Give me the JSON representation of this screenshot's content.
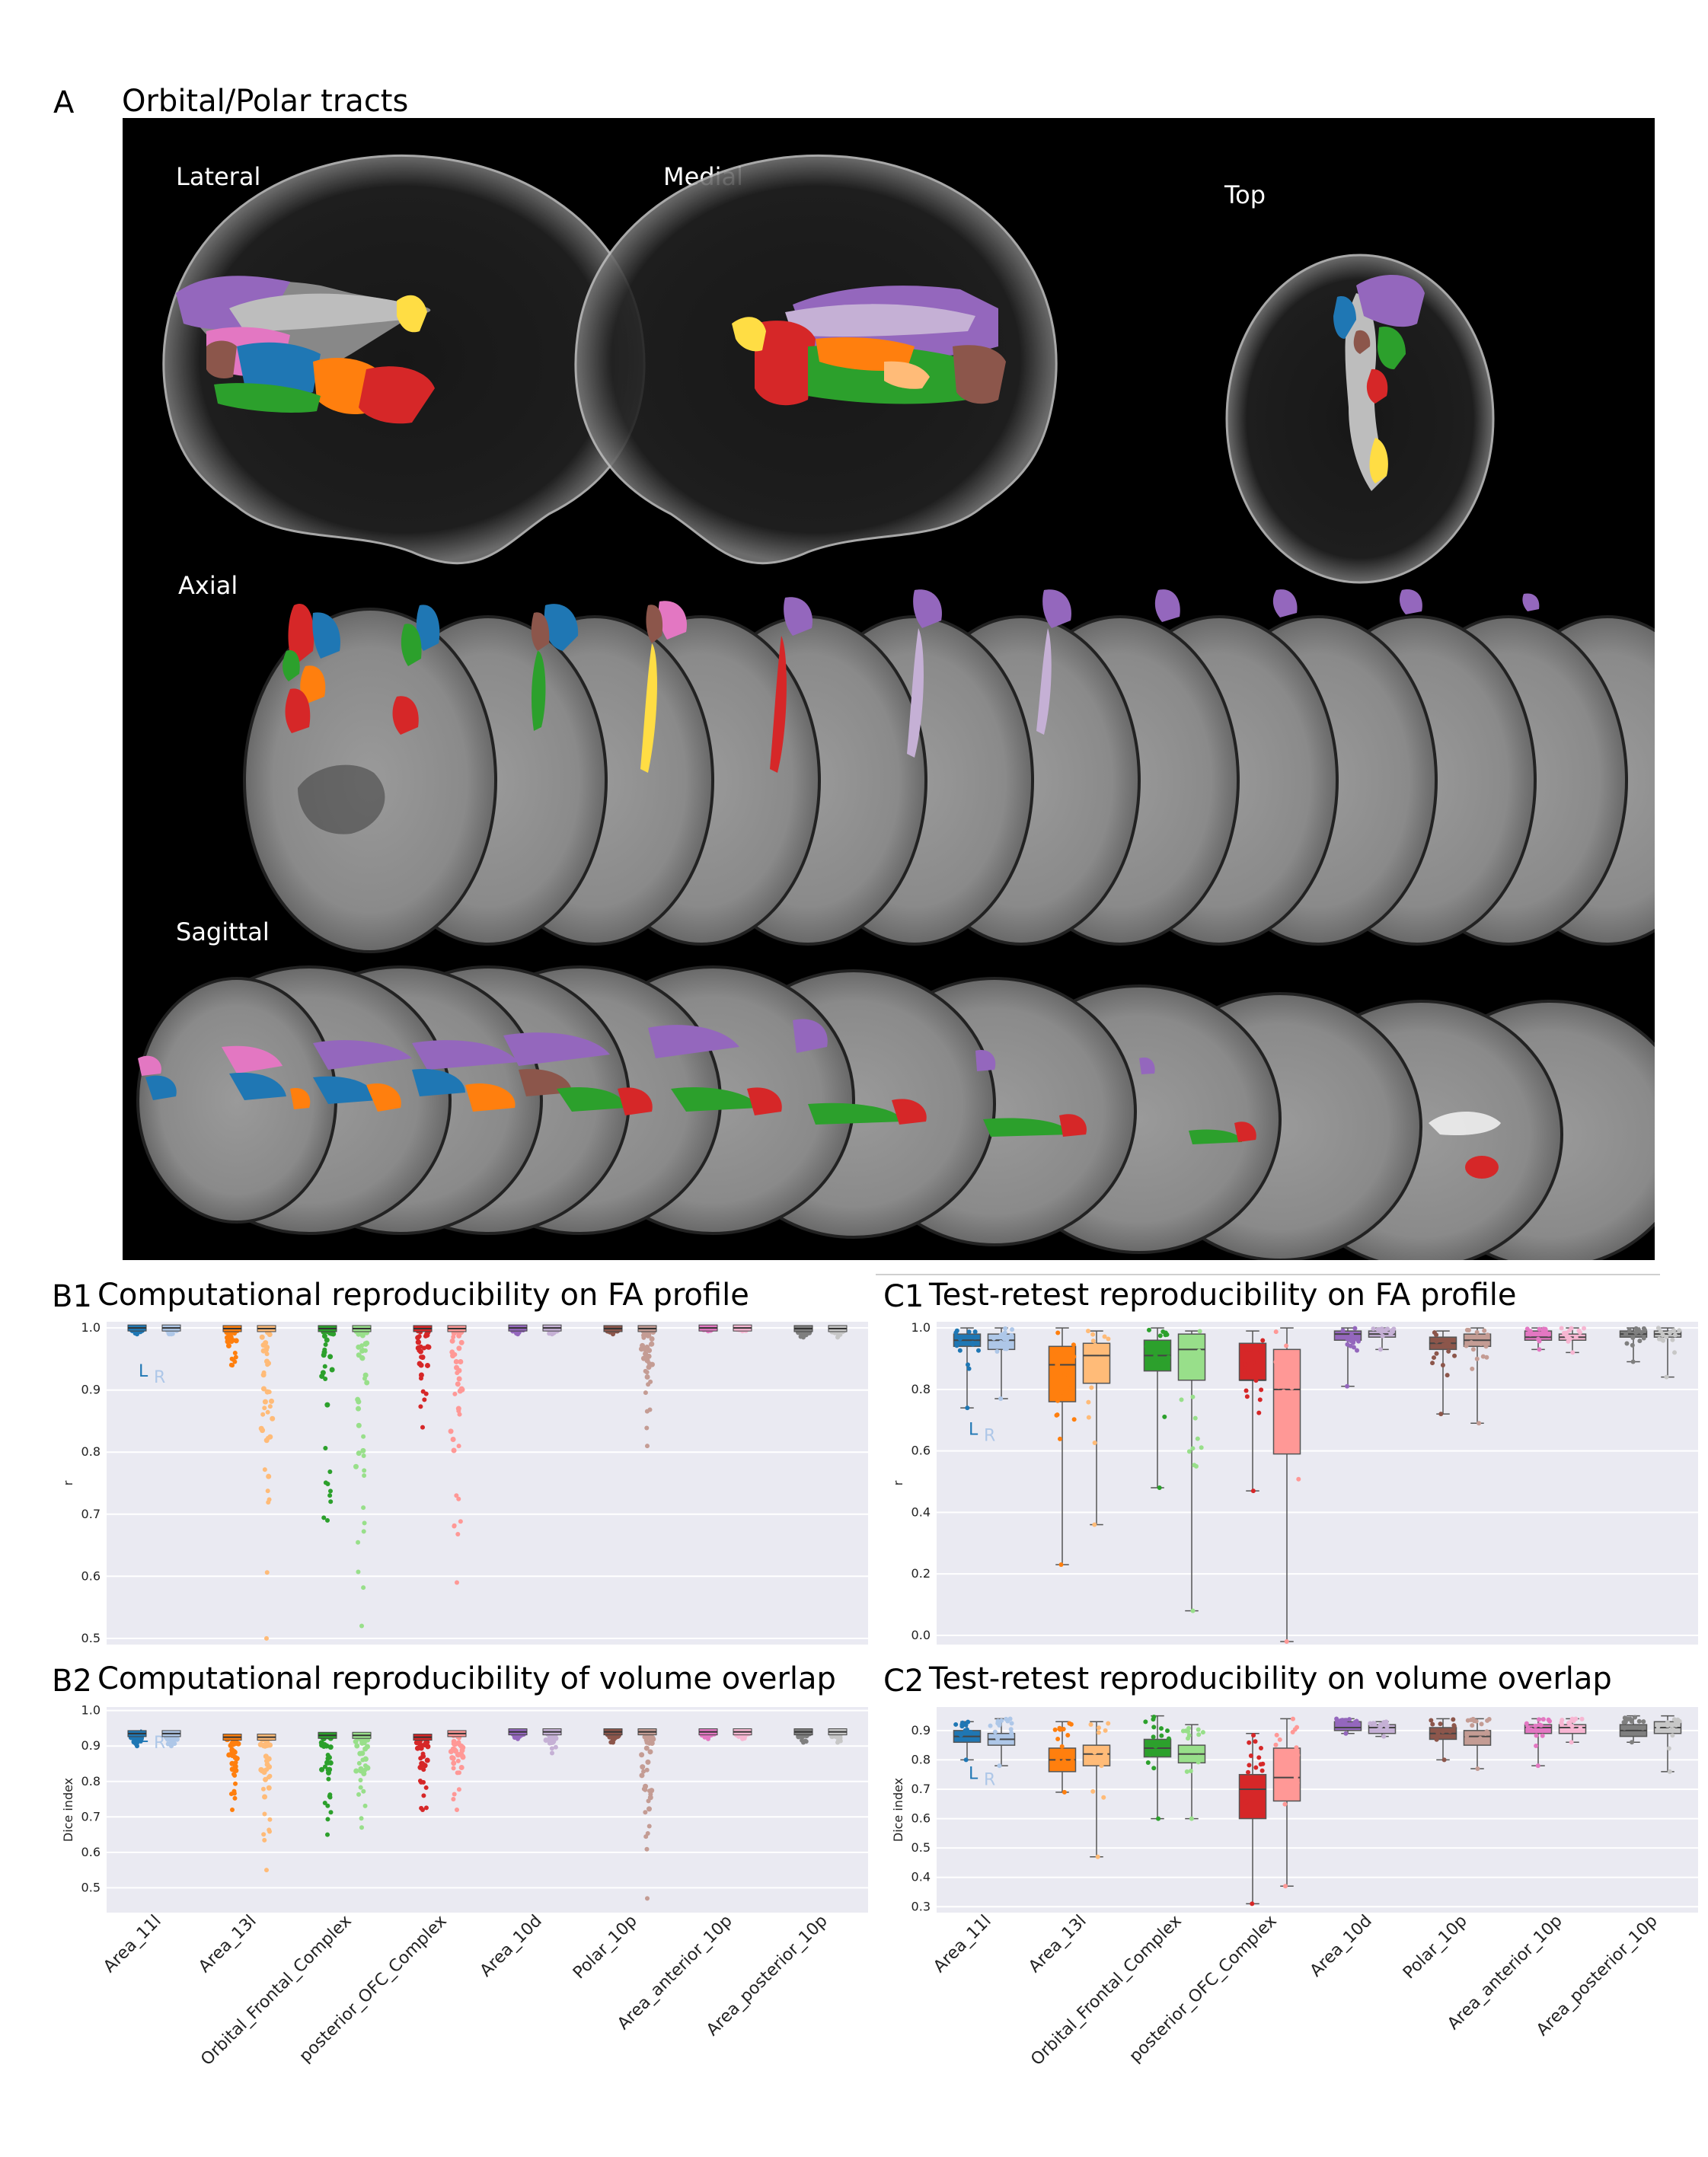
{
  "panel_a": {
    "letter": "A",
    "title": "Orbital/Polar tracts",
    "views": {
      "lateral": "Lateral",
      "medial": "Medial",
      "top": "Top",
      "axial": "Axial",
      "sagittal": "Sagittal"
    }
  },
  "colors": {
    "Area_11l": [
      "#1f77b4",
      "#aec7e8"
    ],
    "Area_13l": [
      "#ff7f0e",
      "#ffbb78"
    ],
    "Orbital_Frontal_Complex": [
      "#2ca02c",
      "#98df8a"
    ],
    "posterior_OFC_Complex": [
      "#d62728",
      "#ff9896"
    ],
    "Area_10d": [
      "#9467bd",
      "#c5b0d5"
    ],
    "Polar_10p": [
      "#8c564b",
      "#c49c94"
    ],
    "Area_anterior_10p": [
      "#e377c2",
      "#f7b6d2"
    ],
    "Area_posterior_10p": [
      "#7f7f7f",
      "#c7c7c7"
    ]
  },
  "chart_data": [
    {
      "id": "B1",
      "letter": "B1",
      "title": "Computational reproducibility on FA profile",
      "type": "strip",
      "ylabel": "r",
      "ylim": [
        0.49,
        1.01
      ],
      "yticks": [
        "1.0",
        "0.9",
        "0.8",
        "0.7",
        "0.6",
        "0.5"
      ],
      "legend": [
        "L",
        "R"
      ],
      "categories": [
        "Area_11l",
        "Area_13l",
        "Orbital_Frontal_Complex",
        "posterior_OFC_Complex",
        "Area_10d",
        "Polar_10p",
        "Area_anterior_10p",
        "Area_posterior_10p"
      ],
      "series": [
        {
          "name": "L",
          "median": [
            1.0,
            0.999,
            0.999,
            0.999,
            1.0,
            0.999,
            1.0,
            0.999
          ],
          "min": [
            0.99,
            0.94,
            0.69,
            0.84,
            0.99,
            0.99,
            0.995,
            0.985
          ]
        },
        {
          "name": "R",
          "median": [
            1.0,
            0.999,
            0.999,
            0.999,
            1.0,
            0.999,
            1.0,
            0.999
          ],
          "min": [
            0.99,
            0.5,
            0.52,
            0.59,
            0.99,
            0.81,
            0.995,
            0.985
          ]
        }
      ]
    },
    {
      "id": "B2",
      "letter": "B2",
      "title": "Computational reproducibility of volume overlap",
      "type": "strip",
      "ylabel": "Dice index",
      "ylim": [
        0.43,
        1.01
      ],
      "yticks": [
        "1.0",
        "0.9",
        "0.8",
        "0.7",
        "0.6",
        "0.5"
      ],
      "legend": [
        "L",
        "R"
      ],
      "categories": [
        "Area_11l",
        "Area_13l",
        "Orbital_Frontal_Complex",
        "posterior_OFC_Complex",
        "Area_10d",
        "Polar_10p",
        "Area_anterior_10p",
        "Area_posterior_10p"
      ],
      "series": [
        {
          "name": "L",
          "median": [
            0.935,
            0.925,
            0.93,
            0.925,
            0.94,
            0.94,
            0.94,
            0.94
          ],
          "min": [
            0.9,
            0.72,
            0.65,
            0.72,
            0.92,
            0.91,
            0.92,
            0.91
          ]
        },
        {
          "name": "R",
          "median": [
            0.935,
            0.925,
            0.93,
            0.935,
            0.94,
            0.94,
            0.94,
            0.94
          ],
          "min": [
            0.9,
            0.55,
            0.67,
            0.72,
            0.88,
            0.47,
            0.92,
            0.91
          ]
        }
      ]
    },
    {
      "id": "C1",
      "letter": "C1",
      "title": "Test-retest reproducibility on FA profile",
      "type": "box",
      "ylabel": "r",
      "ylim": [
        -0.03,
        1.02
      ],
      "yticks": [
        "1.0",
        "0.8",
        "0.6",
        "0.4",
        "0.2",
        "0.0"
      ],
      "legend": [
        "L",
        "R"
      ],
      "categories": [
        "Area_11l",
        "Area_13l",
        "Orbital_Frontal_Complex",
        "posterior_OFC_Complex",
        "Area_10d",
        "Polar_10p",
        "Area_anterior_10p",
        "Area_posterior_10p"
      ],
      "series": [
        {
          "name": "L",
          "q1": [
            0.94,
            0.76,
            0.86,
            0.83,
            0.96,
            0.93,
            0.96,
            0.97
          ],
          "median": [
            0.96,
            0.88,
            0.91,
            0.83,
            0.98,
            0.95,
            0.97,
            0.98
          ],
          "q3": [
            0.98,
            0.94,
            0.96,
            0.95,
            0.99,
            0.97,
            0.99,
            0.99
          ],
          "min": [
            0.74,
            0.23,
            0.48,
            0.47,
            0.81,
            0.72,
            0.93,
            0.89
          ],
          "max": [
            1.0,
            1.0,
            1.0,
            0.99,
            1.0,
            0.99,
            1.0,
            1.0
          ]
        },
        {
          "name": "R",
          "q1": [
            0.93,
            0.82,
            0.83,
            0.59,
            0.97,
            0.94,
            0.96,
            0.97
          ],
          "median": [
            0.96,
            0.91,
            0.93,
            0.8,
            0.98,
            0.96,
            0.97,
            0.98
          ],
          "q3": [
            0.98,
            0.95,
            0.98,
            0.93,
            0.99,
            0.98,
            0.98,
            0.99
          ],
          "min": [
            0.77,
            0.36,
            0.08,
            -0.02,
            0.93,
            0.69,
            0.92,
            0.84
          ],
          "max": [
            1.0,
            0.99,
            0.99,
            1.0,
            1.0,
            1.0,
            1.0,
            1.0
          ]
        }
      ]
    },
    {
      "id": "C2",
      "letter": "C2",
      "title": "Test-retest reproducibility on volume overlap",
      "type": "box",
      "ylabel": "Dice index",
      "ylim": [
        0.28,
        0.98
      ],
      "yticks": [
        "0.9",
        "0.8",
        "0.7",
        "0.6",
        "0.5",
        "0.4",
        "0.3"
      ],
      "legend": [
        "L",
        "R"
      ],
      "categories": [
        "Area_11l",
        "Area_13l",
        "Orbital_Frontal_Complex",
        "posterior_OFC_Complex",
        "Area_10d",
        "Polar_10p",
        "Area_anterior_10p",
        "Area_posterior_10p"
      ],
      "series": [
        {
          "name": "L",
          "q1": [
            0.86,
            0.76,
            0.81,
            0.6,
            0.9,
            0.87,
            0.89,
            0.88
          ],
          "median": [
            0.88,
            0.8,
            0.84,
            0.7,
            0.91,
            0.89,
            0.91,
            0.9
          ],
          "q3": [
            0.9,
            0.84,
            0.87,
            0.75,
            0.93,
            0.91,
            0.92,
            0.92
          ],
          "min": [
            0.8,
            0.69,
            0.6,
            0.31,
            0.89,
            0.8,
            0.78,
            0.86
          ],
          "max": [
            0.93,
            0.93,
            0.95,
            0.89,
            0.94,
            0.94,
            0.94,
            0.95
          ]
        },
        {
          "name": "R",
          "q1": [
            0.85,
            0.78,
            0.79,
            0.66,
            0.89,
            0.85,
            0.89,
            0.89
          ],
          "median": [
            0.87,
            0.82,
            0.82,
            0.74,
            0.91,
            0.88,
            0.91,
            0.91
          ],
          "q3": [
            0.89,
            0.85,
            0.85,
            0.84,
            0.92,
            0.9,
            0.92,
            0.93
          ],
          "min": [
            0.78,
            0.47,
            0.6,
            0.37,
            0.88,
            0.77,
            0.86,
            0.76
          ],
          "max": [
            0.94,
            0.93,
            0.92,
            0.94,
            0.93,
            0.94,
            0.94,
            0.95
          ]
        }
      ]
    }
  ]
}
